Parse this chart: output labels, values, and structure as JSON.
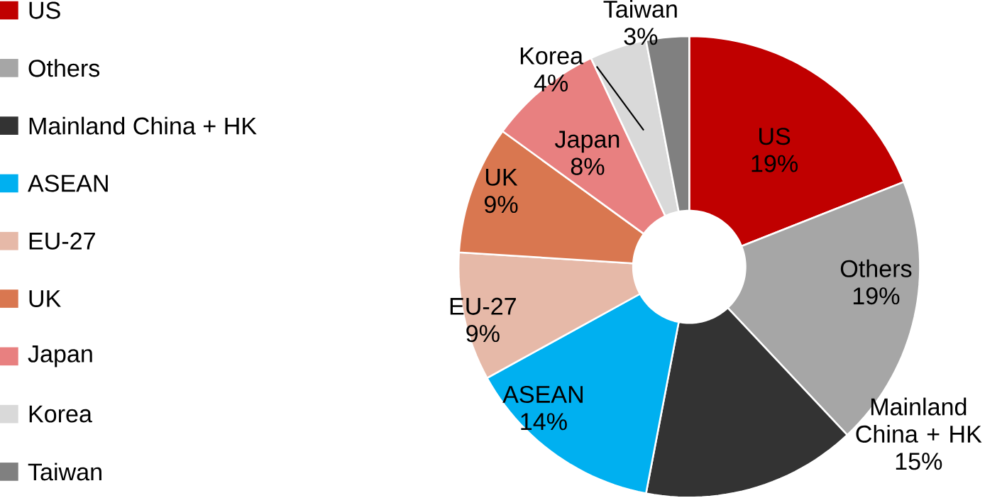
{
  "chart_data": {
    "type": "donut",
    "categories": [
      "US",
      "Others",
      "Mainland China + HK",
      "ASEAN",
      "EU-27",
      "UK",
      "Japan",
      "Korea",
      "Taiwan"
    ],
    "values": [
      19,
      19,
      15,
      14,
      9,
      9,
      8,
      4,
      3
    ],
    "value_labels": [
      "19%",
      "19%",
      "15%",
      "14%",
      "9%",
      "9%",
      "8%",
      "4%",
      "3%"
    ],
    "colors": [
      "#c00000",
      "#a6a6a6",
      "#333333",
      "#00b0f0",
      "#e6b9a8",
      "#d97750",
      "#e88080",
      "#d9d9d9",
      "#808080"
    ],
    "legend": "left"
  }
}
